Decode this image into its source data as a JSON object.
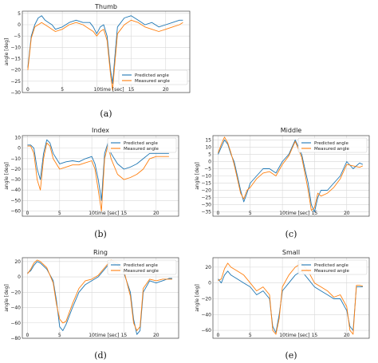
{
  "colors": {
    "predicted": "#1f77b4",
    "measured": "#ff7f0e"
  },
  "chart_data": [
    {
      "type": "line",
      "title": "Thumb",
      "caption": "(a)",
      "xlabel": "time [sec]",
      "ylabel": "angle [deg]",
      "xlim": [
        -0.8,
        23.5
      ],
      "ylim": [
        -30,
        6
      ],
      "xticks": [
        0,
        5,
        10,
        15,
        20
      ],
      "yticks": [
        5,
        0,
        -5,
        -10,
        -15,
        -20,
        -25,
        -30
      ],
      "legend_position": "lower-right",
      "grid": true,
      "series": [
        {
          "name": "Predicted angle",
          "x": [
            0,
            0.5,
            1,
            1.5,
            2,
            2.5,
            3,
            3.5,
            4,
            5,
            6,
            7,
            8,
            9,
            9.5,
            10,
            10.5,
            11,
            11.5,
            12,
            12.3,
            12.6,
            13,
            13.5,
            14,
            15,
            16,
            17,
            18,
            19,
            20,
            21,
            22,
            22.5
          ],
          "y": [
            -19,
            -5,
            0,
            3,
            4,
            2,
            1,
            0,
            -2,
            -1,
            1,
            2,
            1,
            1,
            -1,
            -4,
            -1,
            0,
            -5,
            -20,
            -26,
            -15,
            -1,
            1,
            3,
            4,
            2,
            0,
            1,
            -1,
            0,
            1,
            2,
            2
          ]
        },
        {
          "name": "Measured angle",
          "x": [
            0,
            0.5,
            1,
            1.5,
            2,
            2.5,
            3,
            3.5,
            4,
            5,
            6,
            7,
            8,
            9,
            9.5,
            10,
            10.5,
            11,
            11.5,
            12,
            12.3,
            12.6,
            13,
            13.5,
            14,
            15,
            16,
            17,
            18,
            19,
            20,
            21,
            22,
            22.5
          ],
          "y": [
            -20,
            -6,
            -1,
            0,
            1,
            0,
            -1,
            -2,
            -3,
            -2,
            0,
            1,
            0,
            -2,
            -3,
            -5,
            -3,
            -2,
            -7,
            -22,
            -29,
            -18,
            -4,
            -2,
            0,
            2,
            1,
            -1,
            -2,
            -3,
            -2,
            -1,
            0,
            1
          ]
        }
      ]
    },
    {
      "type": "line",
      "title": "Index",
      "caption": "(b)",
      "xlabel": "time [sec]",
      "ylabel": "angle [deg]",
      "xlim": [
        -0.8,
        23.5
      ],
      "ylim": [
        -65,
        12
      ],
      "xticks": [
        0,
        5,
        10,
        15,
        20
      ],
      "yticks": [
        10,
        0,
        -10,
        -20,
        -30,
        -40,
        -50,
        -60
      ],
      "legend_position": "upper-right",
      "grid": true,
      "series": [
        {
          "name": "Predicted angle",
          "x": [
            0,
            0.5,
            1,
            1.5,
            2,
            2.5,
            3,
            3.5,
            4,
            5,
            6,
            7,
            8,
            9,
            10,
            10.5,
            11,
            11.5,
            12,
            12.5,
            13,
            14,
            15,
            16,
            17,
            18,
            19,
            20,
            21,
            22
          ],
          "y": [
            3,
            3,
            0,
            -20,
            -30,
            -5,
            8,
            5,
            -5,
            -15,
            -13,
            -12,
            -13,
            -10,
            -8,
            -15,
            -30,
            -50,
            -5,
            5,
            -5,
            -15,
            -20,
            -18,
            -15,
            -10,
            -5,
            -5,
            -5,
            -5
          ]
        },
        {
          "name": "Measured angle",
          "x": [
            0,
            0.5,
            1,
            1.5,
            2,
            2.5,
            3,
            3.5,
            4,
            5,
            6,
            7,
            8,
            9,
            10,
            10.5,
            11,
            11.5,
            12,
            12.5,
            13,
            14,
            15,
            16,
            17,
            18,
            19,
            20,
            21,
            22
          ],
          "y": [
            2,
            2,
            -5,
            -30,
            -40,
            -10,
            5,
            2,
            -10,
            -20,
            -18,
            -16,
            -16,
            -14,
            -12,
            -20,
            -40,
            -60,
            -10,
            3,
            -10,
            -25,
            -30,
            -28,
            -25,
            -20,
            -10,
            -8,
            -8,
            -8
          ]
        }
      ]
    },
    {
      "type": "line",
      "title": "Middle",
      "caption": "(c)",
      "xlabel": "time [sec]",
      "ylabel": "angle [deg]",
      "xlim": [
        -0.8,
        23.5
      ],
      "ylim": [
        -38,
        18
      ],
      "xticks": [
        0,
        5,
        10,
        15,
        20
      ],
      "yticks": [
        15,
        10,
        5,
        0,
        -5,
        -10,
        -15,
        -20,
        -25,
        -30,
        -35
      ],
      "legend_position": "upper-right",
      "grid": true,
      "series": [
        {
          "name": "Predicted angle",
          "x": [
            0,
            0.5,
            1,
            1.5,
            2,
            2.5,
            3,
            3.5,
            4,
            4.5,
            5,
            6,
            7,
            8,
            9,
            10,
            11,
            12,
            13,
            13.5,
            14,
            14.5,
            15,
            15.5,
            16,
            17,
            18,
            19,
            20,
            21,
            22,
            22.5
          ],
          "y": [
            5,
            10,
            15,
            12,
            5,
            0,
            -10,
            -20,
            -28,
            -22,
            -15,
            -10,
            -5,
            -5,
            -8,
            0,
            5,
            15,
            5,
            -5,
            -15,
            -30,
            -35,
            -25,
            -20,
            -20,
            -15,
            -10,
            0,
            -5,
            -1,
            -2
          ]
        },
        {
          "name": "Measured angle",
          "x": [
            0,
            0.5,
            1,
            1.5,
            2,
            2.5,
            3,
            3.5,
            4,
            4.5,
            5,
            6,
            7,
            8,
            9,
            10,
            11,
            12,
            13,
            13.5,
            14,
            14.5,
            15,
            15.5,
            16,
            17,
            18,
            19,
            20,
            21,
            22,
            22.5
          ],
          "y": [
            6,
            12,
            17,
            13,
            6,
            -2,
            -12,
            -22,
            -26,
            -20,
            -18,
            -12,
            -8,
            -7,
            -10,
            -2,
            4,
            14,
            3,
            -8,
            -20,
            -34,
            -32,
            -22,
            -24,
            -22,
            -18,
            -12,
            -2,
            -3,
            -4,
            -3
          ]
        }
      ]
    },
    {
      "type": "line",
      "title": "Ring",
      "caption": "(d)",
      "xlabel": "time [sec]",
      "ylabel": "angle [deg]",
      "xlim": [
        -0.8,
        23.5
      ],
      "ylim": [
        -80,
        25
      ],
      "xticks": [
        0,
        5,
        10,
        15,
        20
      ],
      "yticks": [
        20,
        0,
        -20,
        -40,
        -60,
        -80
      ],
      "legend_position": "upper-right",
      "grid": true,
      "series": [
        {
          "name": "Predicted angle",
          "x": [
            0,
            0.5,
            1,
            1.5,
            2,
            3,
            4,
            4.5,
            5,
            5.5,
            6,
            7,
            8,
            9,
            10,
            11,
            12,
            13,
            14,
            15,
            16,
            16.5,
            17,
            17.5,
            18,
            19,
            20,
            21,
            22,
            22.5
          ],
          "y": [
            5,
            8,
            15,
            20,
            18,
            10,
            -5,
            -30,
            -65,
            -70,
            -62,
            -40,
            -20,
            -10,
            -5,
            0,
            10,
            20,
            15,
            5,
            -20,
            -55,
            -75,
            -70,
            -20,
            -5,
            -8,
            -5,
            -2,
            -2
          ]
        },
        {
          "name": "Measured angle",
          "x": [
            0,
            0.5,
            1,
            1.5,
            2,
            3,
            4,
            4.5,
            5,
            5.5,
            6,
            7,
            8,
            9,
            10,
            11,
            12,
            13,
            14,
            15,
            16,
            16.5,
            17,
            17.5,
            18,
            19,
            20,
            21,
            22,
            22.5
          ],
          "y": [
            4,
            10,
            18,
            22,
            20,
            12,
            -8,
            -35,
            -55,
            -60,
            -58,
            -35,
            -15,
            -5,
            -3,
            2,
            12,
            22,
            18,
            8,
            -25,
            -60,
            -70,
            -65,
            -15,
            -3,
            -5,
            -3,
            -3,
            -3
          ]
        }
      ]
    },
    {
      "type": "line",
      "title": "Small",
      "caption": "(e)",
      "xlabel": "time [sec]",
      "ylabel": "angle [deg]",
      "xlim": [
        -0.8,
        23.5
      ],
      "ylim": [
        -70,
        32
      ],
      "xticks": [
        0,
        5,
        10,
        15,
        20
      ],
      "yticks": [
        20,
        0,
        -20,
        -40,
        -60
      ],
      "legend_position": "upper-right",
      "grid": true,
      "series": [
        {
          "name": "Predicted angle",
          "x": [
            0,
            0.5,
            1,
            1.5,
            2,
            3,
            4,
            5,
            6,
            7,
            8,
            8.5,
            9,
            9.5,
            10,
            11,
            12,
            13,
            14,
            15,
            16,
            17,
            18,
            19,
            20,
            20.5,
            21,
            21.5,
            22,
            22.5
          ],
          "y": [
            5,
            0,
            10,
            15,
            10,
            5,
            0,
            -5,
            -15,
            -10,
            -20,
            -55,
            -63,
            -40,
            -10,
            0,
            10,
            15,
            5,
            -5,
            -10,
            -15,
            -20,
            -20,
            -35,
            -55,
            -60,
            -5,
            -5,
            -5
          ]
        },
        {
          "name": "Measured angle",
          "x": [
            0,
            0.5,
            1,
            1.5,
            2,
            3,
            4,
            5,
            6,
            7,
            8,
            8.5,
            9,
            9.5,
            10,
            11,
            12,
            13,
            14,
            15,
            16,
            17,
            18,
            19,
            20,
            20.5,
            21,
            21.5,
            22,
            22.5
          ],
          "y": [
            3,
            5,
            18,
            25,
            20,
            15,
            10,
            0,
            -10,
            -5,
            -15,
            -60,
            -65,
            -45,
            -5,
            10,
            20,
            25,
            15,
            0,
            -5,
            -10,
            -18,
            -15,
            -30,
            -60,
            -65,
            -3,
            -3,
            -4
          ]
        }
      ]
    }
  ]
}
